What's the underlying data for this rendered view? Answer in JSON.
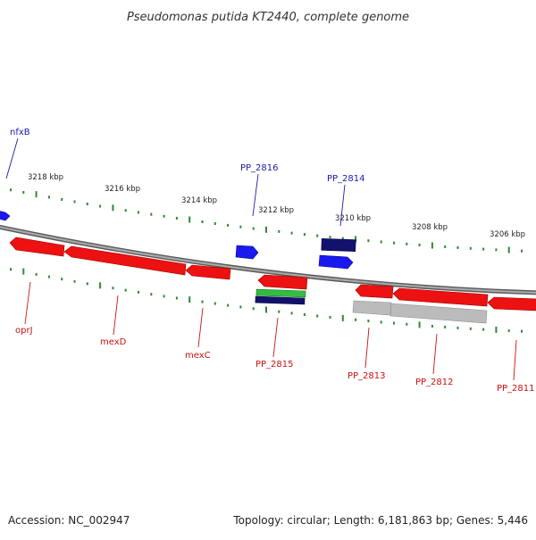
{
  "title": "Pseudomonas putida KT2440, complete genome",
  "footer": {
    "accession": "Accession: NC_002947",
    "summary": "Topology: circular; Length: 6,181,863 bp; Genes: 5,446"
  },
  "colors": {
    "backbone": "#8a8a8a",
    "forward_gene": "#1a1aee",
    "reverse_gene": "#ee1111",
    "forward_label": "#1a1aaa",
    "reverse_label": "#cc1111",
    "tick": "#2e8b2e",
    "dark_feature": "#12126e",
    "green_feature": "#33bb44",
    "grey_feature": "#bbbbbb"
  },
  "ruler": {
    "labels": [
      "3218 kbp",
      "3216 kbp",
      "3214 kbp",
      "3212 kbp",
      "3210 kbp",
      "3208 kbp",
      "3206 kbp"
    ]
  },
  "gene_labels": {
    "forward": [
      "nfxB",
      "PP_2816",
      "PP_2814"
    ],
    "reverse": [
      "oprJ",
      "mexD",
      "mexC",
      "PP_2815",
      "PP_2813",
      "PP_2812",
      "PP_2811"
    ]
  }
}
